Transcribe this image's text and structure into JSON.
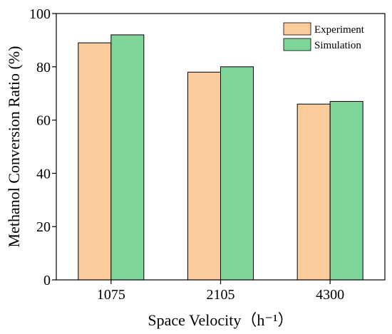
{
  "chart_data": {
    "type": "bar",
    "categories": [
      "1075",
      "2105",
      "4300"
    ],
    "series": [
      {
        "name": "Experiment",
        "values": [
          89,
          78,
          66
        ],
        "color": "#FCCB9B"
      },
      {
        "name": "Simulation",
        "values": [
          92,
          80,
          67
        ],
        "color": "#7ED69A"
      }
    ],
    "xlabel": "Space Velocity（h⁻¹）",
    "ylabel": "Methanol Conversion Ratio (%)",
    "ylim": [
      0,
      100
    ],
    "yticks": [
      "0",
      "20",
      "40",
      "60",
      "80",
      "100"
    ],
    "grid": false,
    "legend_position": "top-right"
  }
}
